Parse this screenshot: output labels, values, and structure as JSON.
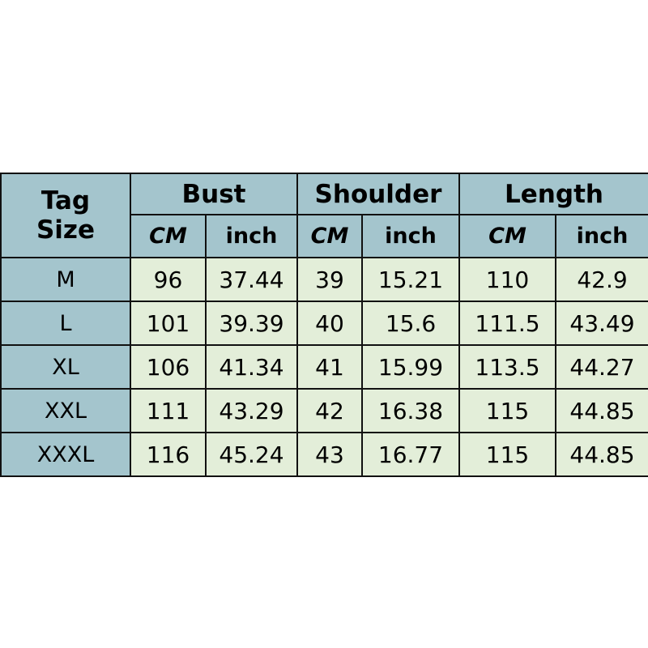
{
  "table": {
    "tag_header_line1": "Tag",
    "tag_header_line2": "Size",
    "groups": [
      "Bust",
      "Shoulder",
      "Length"
    ],
    "units": [
      "CM",
      "inch",
      "CM",
      "inch",
      "CM",
      "inch"
    ],
    "rows": [
      [
        "M",
        "96",
        "37.44",
        "39",
        "15.21",
        "110",
        "42.9"
      ],
      [
        "L",
        "101",
        "39.39",
        "40",
        "15.6",
        "111.5",
        "43.49"
      ],
      [
        "XL",
        "106",
        "41.34",
        "41",
        "15.99",
        "113.5",
        "44.27"
      ],
      [
        "XXL",
        "111",
        "43.29",
        "42",
        "16.38",
        "115",
        "44.85"
      ],
      [
        "XXXL",
        "116",
        "45.24",
        "43",
        "16.77",
        "115",
        "44.85"
      ]
    ]
  },
  "colors": {
    "header": "#a4c5cd",
    "cell": "#e3eed9",
    "border": "#111111"
  }
}
